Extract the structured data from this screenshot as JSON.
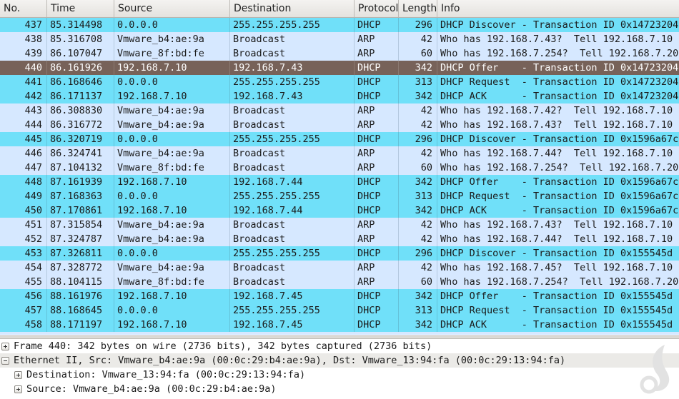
{
  "columns": [
    "No.",
    "Time",
    "Source",
    "Destination",
    "Protocol",
    "Length",
    "Info"
  ],
  "packets": [
    {
      "no": "437",
      "time": "85.314498",
      "src": "0.0.0.0",
      "dst": "255.255.255.255",
      "proto": "DHCP",
      "len": "296",
      "info": "DHCP Discover - Transaction ID 0x14723204",
      "kind": "dhcp"
    },
    {
      "no": "438",
      "time": "85.316708",
      "src": "Vmware_b4:ae:9a",
      "dst": "Broadcast",
      "proto": "ARP",
      "len": "42",
      "info": "Who has 192.168.7.43?  Tell 192.168.7.10",
      "kind": "arp"
    },
    {
      "no": "439",
      "time": "86.107047",
      "src": "Vmware_8f:bd:fe",
      "dst": "Broadcast",
      "proto": "ARP",
      "len": "60",
      "info": "Who has 192.168.7.254?  Tell 192.168.7.20",
      "kind": "arp"
    },
    {
      "no": "440",
      "time": "86.161926",
      "src": "192.168.7.10",
      "dst": "192.168.7.43",
      "proto": "DHCP",
      "len": "342",
      "info": "DHCP Offer    - Transaction ID 0x14723204",
      "kind": "sel"
    },
    {
      "no": "441",
      "time": "86.168646",
      "src": "0.0.0.0",
      "dst": "255.255.255.255",
      "proto": "DHCP",
      "len": "313",
      "info": "DHCP Request  - Transaction ID 0x14723204",
      "kind": "dhcp"
    },
    {
      "no": "442",
      "time": "86.171137",
      "src": "192.168.7.10",
      "dst": "192.168.7.43",
      "proto": "DHCP",
      "len": "342",
      "info": "DHCP ACK      - Transaction ID 0x14723204",
      "kind": "dhcp"
    },
    {
      "no": "443",
      "time": "86.308830",
      "src": "Vmware_b4:ae:9a",
      "dst": "Broadcast",
      "proto": "ARP",
      "len": "42",
      "info": "Who has 192.168.7.42?  Tell 192.168.7.10",
      "kind": "arp"
    },
    {
      "no": "444",
      "time": "86.316772",
      "src": "Vmware_b4:ae:9a",
      "dst": "Broadcast",
      "proto": "ARP",
      "len": "42",
      "info": "Who has 192.168.7.43?  Tell 192.168.7.10",
      "kind": "arp"
    },
    {
      "no": "445",
      "time": "86.320719",
      "src": "0.0.0.0",
      "dst": "255.255.255.255",
      "proto": "DHCP",
      "len": "296",
      "info": "DHCP Discover - Transaction ID 0x1596a67c",
      "kind": "dhcp"
    },
    {
      "no": "446",
      "time": "86.324741",
      "src": "Vmware_b4:ae:9a",
      "dst": "Broadcast",
      "proto": "ARP",
      "len": "42",
      "info": "Who has 192.168.7.44?  Tell 192.168.7.10",
      "kind": "arp"
    },
    {
      "no": "447",
      "time": "87.104132",
      "src": "Vmware_8f:bd:fe",
      "dst": "Broadcast",
      "proto": "ARP",
      "len": "60",
      "info": "Who has 192.168.7.254?  Tell 192.168.7.20",
      "kind": "arp"
    },
    {
      "no": "448",
      "time": "87.161939",
      "src": "192.168.7.10",
      "dst": "192.168.7.44",
      "proto": "DHCP",
      "len": "342",
      "info": "DHCP Offer    - Transaction ID 0x1596a67c",
      "kind": "dhcp"
    },
    {
      "no": "449",
      "time": "87.168363",
      "src": "0.0.0.0",
      "dst": "255.255.255.255",
      "proto": "DHCP",
      "len": "313",
      "info": "DHCP Request  - Transaction ID 0x1596a67c",
      "kind": "dhcp"
    },
    {
      "no": "450",
      "time": "87.170861",
      "src": "192.168.7.10",
      "dst": "192.168.7.44",
      "proto": "DHCP",
      "len": "342",
      "info": "DHCP ACK      - Transaction ID 0x1596a67c",
      "kind": "dhcp"
    },
    {
      "no": "451",
      "time": "87.315854",
      "src": "Vmware_b4:ae:9a",
      "dst": "Broadcast",
      "proto": "ARP",
      "len": "42",
      "info": "Who has 192.168.7.43?  Tell 192.168.7.10",
      "kind": "arp"
    },
    {
      "no": "452",
      "time": "87.324787",
      "src": "Vmware_b4:ae:9a",
      "dst": "Broadcast",
      "proto": "ARP",
      "len": "42",
      "info": "Who has 192.168.7.44?  Tell 192.168.7.10",
      "kind": "arp"
    },
    {
      "no": "453",
      "time": "87.326811",
      "src": "0.0.0.0",
      "dst": "255.255.255.255",
      "proto": "DHCP",
      "len": "296",
      "info": "DHCP Discover - Transaction ID 0x155545d",
      "kind": "dhcp"
    },
    {
      "no": "454",
      "time": "87.328772",
      "src": "Vmware_b4:ae:9a",
      "dst": "Broadcast",
      "proto": "ARP",
      "len": "42",
      "info": "Who has 192.168.7.45?  Tell 192.168.7.10",
      "kind": "arp"
    },
    {
      "no": "455",
      "time": "88.104115",
      "src": "Vmware_8f:bd:fe",
      "dst": "Broadcast",
      "proto": "ARP",
      "len": "60",
      "info": "Who has 192.168.7.254?  Tell 192.168.7.20",
      "kind": "arp"
    },
    {
      "no": "456",
      "time": "88.161976",
      "src": "192.168.7.10",
      "dst": "192.168.7.45",
      "proto": "DHCP",
      "len": "342",
      "info": "DHCP Offer    - Transaction ID 0x155545d",
      "kind": "dhcp"
    },
    {
      "no": "457",
      "time": "88.168645",
      "src": "0.0.0.0",
      "dst": "255.255.255.255",
      "proto": "DHCP",
      "len": "313",
      "info": "DHCP Request  - Transaction ID 0x155545d",
      "kind": "dhcp"
    },
    {
      "no": "458",
      "time": "88.171197",
      "src": "192.168.7.10",
      "dst": "192.168.7.45",
      "proto": "DHCP",
      "len": "342",
      "info": "DHCP ACK      - Transaction ID 0x155545d",
      "kind": "dhcp"
    }
  ],
  "details": [
    {
      "text": "Frame 440: 342 bytes on wire (2736 bits), 342 bytes captured (2736 bits)",
      "expanded": false,
      "indent": 0
    },
    {
      "text": "Ethernet II, Src: Vmware_b4:ae:9a (00:0c:29:b4:ae:9a), Dst: Vmware_13:94:fa (00:0c:29:13:94:fa)",
      "expanded": true,
      "indent": 0
    },
    {
      "text": "Destination: Vmware_13:94:fa (00:0c:29:13:94:fa)",
      "expanded": false,
      "indent": 1
    },
    {
      "text": "Source: Vmware_b4:ae:9a (00:0c:29:b4:ae:9a)",
      "expanded": false,
      "indent": 1
    }
  ],
  "colors": {
    "dhcp_row": "#70e0f9",
    "arp_row": "#d6e8ff",
    "selected_row": "#776259"
  },
  "logo_icon": "wireshark-fin-logo-icon"
}
